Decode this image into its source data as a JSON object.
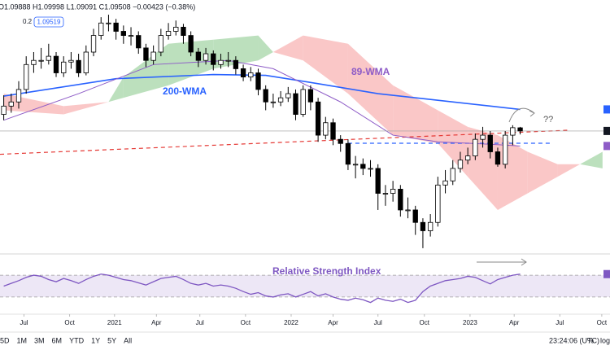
{
  "chart_data": {
    "type": "candlestick",
    "legend_text": "O1.09888 H1.09998 L1.09091 C1.09508 −0.00423 (−0.38%)",
    "indicator_labels": [
      "0.2",
      "1.09519"
    ],
    "up_color": "#ffffff",
    "down_color": "#000000",
    "xlim": [
      -0.5,
      81
    ],
    "xticks": [
      {
        "value": 2.7,
        "label": "Jul"
      },
      {
        "value": 8.8,
        "label": "Oct"
      },
      {
        "value": 14.8,
        "label": "2021"
      },
      {
        "value": 20.4,
        "label": "Apr"
      },
      {
        "value": 26.2,
        "label": "Jul"
      },
      {
        "value": 32.3,
        "label": "Oct"
      },
      {
        "value": 38.4,
        "label": "2022"
      },
      {
        "value": 44.0,
        "label": "Apr"
      },
      {
        "value": 50.0,
        "label": "Jul"
      },
      {
        "value": 56.2,
        "label": "Oct"
      },
      {
        "value": 62.3,
        "label": "2023"
      },
      {
        "value": 68.2,
        "label": "Apr"
      },
      {
        "value": 74.3,
        "label": "Jul"
      },
      {
        "value": 79.9,
        "label": "Oct"
      }
    ],
    "ylim": [
      0.949,
      1.2527
    ],
    "candles": [
      [
        1.115,
        1.138,
        1.108,
        1.125
      ],
      [
        1.125,
        1.14,
        1.117,
        1.13
      ],
      [
        1.13,
        1.155,
        1.122,
        1.145
      ],
      [
        1.145,
        1.185,
        1.14,
        1.175
      ],
      [
        1.175,
        1.19,
        1.165,
        1.18
      ],
      [
        1.18,
        1.195,
        1.17,
        1.18
      ],
      [
        1.18,
        1.2,
        1.175,
        1.185
      ],
      [
        1.185,
        1.19,
        1.16,
        1.165
      ],
      [
        1.165,
        1.185,
        1.16,
        1.178
      ],
      [
        1.178,
        1.19,
        1.17,
        1.18
      ],
      [
        1.18,
        1.188,
        1.16,
        1.165
      ],
      [
        1.165,
        1.198,
        1.162,
        1.19
      ],
      [
        1.19,
        1.218,
        1.185,
        1.21
      ],
      [
        1.21,
        1.232,
        1.205,
        1.225
      ],
      [
        1.225,
        1.235,
        1.215,
        1.225
      ],
      [
        1.225,
        1.23,
        1.205,
        1.215
      ],
      [
        1.215,
        1.222,
        1.2,
        1.21
      ],
      [
        1.21,
        1.22,
        1.198,
        1.21
      ],
      [
        1.21,
        1.215,
        1.188,
        1.195
      ],
      [
        1.195,
        1.2,
        1.172,
        1.18
      ],
      [
        1.18,
        1.198,
        1.175,
        1.19
      ],
      [
        1.19,
        1.218,
        1.185,
        1.21
      ],
      [
        1.21,
        1.225,
        1.205,
        1.215
      ],
      [
        1.215,
        1.228,
        1.21,
        1.22
      ],
      [
        1.22,
        1.224,
        1.2,
        1.21
      ],
      [
        1.21,
        1.215,
        1.185,
        1.19
      ],
      [
        1.19,
        1.195,
        1.172,
        1.18
      ],
      [
        1.18,
        1.195,
        1.175,
        1.188
      ],
      [
        1.188,
        1.192,
        1.168,
        1.175
      ],
      [
        1.175,
        1.188,
        1.17,
        1.18
      ],
      [
        1.18,
        1.19,
        1.172,
        1.18
      ],
      [
        1.18,
        1.185,
        1.163,
        1.17
      ],
      [
        1.17,
        1.175,
        1.155,
        1.16
      ],
      [
        1.16,
        1.172,
        1.155,
        1.165
      ],
      [
        1.165,
        1.17,
        1.138,
        1.145
      ],
      [
        1.145,
        1.15,
        1.12,
        1.13
      ],
      [
        1.13,
        1.14,
        1.123,
        1.13
      ],
      [
        1.13,
        1.143,
        1.125,
        1.135
      ],
      [
        1.135,
        1.148,
        1.13,
        1.14
      ],
      [
        1.14,
        1.145,
        1.108,
        1.115
      ],
      [
        1.115,
        1.15,
        1.112,
        1.145
      ],
      [
        1.145,
        1.15,
        1.12,
        1.13
      ],
      [
        1.13,
        1.135,
        1.082,
        1.09
      ],
      [
        1.09,
        1.112,
        1.085,
        1.105
      ],
      [
        1.105,
        1.11,
        1.078,
        1.085
      ],
      [
        1.085,
        1.09,
        1.07,
        1.08
      ],
      [
        1.08,
        1.085,
        1.048,
        1.055
      ],
      [
        1.055,
        1.065,
        1.038,
        1.055
      ],
      [
        1.055,
        1.062,
        1.042,
        1.05
      ],
      [
        1.05,
        1.06,
        1.04,
        1.05
      ],
      [
        1.05,
        1.055,
        1.0,
        1.02
      ],
      [
        1.02,
        1.03,
        1.005,
        1.02
      ],
      [
        1.02,
        1.035,
        1.01,
        1.025
      ],
      [
        1.025,
        1.03,
        0.992,
        1.0
      ],
      [
        1.0,
        1.015,
        0.99,
        1.0
      ],
      [
        1.0,
        1.005,
        0.97,
        0.985
      ],
      [
        0.985,
        0.99,
        0.954,
        0.975
      ],
      [
        0.975,
        0.995,
        0.968,
        0.985
      ],
      [
        0.985,
        1.04,
        0.98,
        1.03
      ],
      [
        1.03,
        1.048,
        1.02,
        1.035
      ],
      [
        1.035,
        1.06,
        1.03,
        1.05
      ],
      [
        1.05,
        1.07,
        1.045,
        1.06
      ],
      [
        1.06,
        1.075,
        1.055,
        1.065
      ],
      [
        1.065,
        1.092,
        1.06,
        1.085
      ],
      [
        1.085,
        1.1,
        1.075,
        1.09
      ],
      [
        1.09,
        1.095,
        1.062,
        1.07
      ],
      [
        1.07,
        1.075,
        1.052,
        1.055
      ],
      [
        1.055,
        1.095,
        1.05,
        1.09
      ],
      [
        1.09,
        1.102,
        1.078,
        1.099
      ],
      [
        1.09888,
        1.09998,
        1.09091,
        1.09508
      ]
    ],
    "lines": [
      {
        "name": "200-WMA",
        "color": "#2962ff",
        "x": [
          0,
          15,
          28,
          35,
          42,
          50,
          58,
          65,
          69
        ],
        "values": [
          1.137,
          1.158,
          1.163,
          1.162,
          1.152,
          1.14,
          1.132,
          1.125,
          1.121
        ]
      },
      {
        "name": "89-WMA",
        "color": "#8e5cc7",
        "x": [
          0,
          10,
          20,
          30,
          36,
          45,
          52,
          58,
          65,
          69
        ],
        "values": [
          1.108,
          1.14,
          1.175,
          1.18,
          1.17,
          1.13,
          1.09,
          1.082,
          1.079,
          1.077
        ]
      }
    ],
    "cloud": {
      "up_color": "#a5d6a7",
      "down_color": "#f8b4b4",
      "x": [
        0,
        8,
        14,
        16,
        22,
        28,
        34,
        36,
        40,
        46,
        52,
        58,
        62,
        66,
        70,
        74,
        77,
        80
      ],
      "span_a": [
        1.12,
        1.115,
        1.13,
        1.16,
        1.2,
        1.205,
        1.21,
        1.19,
        1.18,
        1.14,
        1.09,
        1.08,
        1.04,
        1.0,
        1.02,
        1.04,
        1.055,
        1.07
      ],
      "span_b": [
        1.14,
        1.125,
        1.13,
        1.135,
        1.15,
        1.17,
        1.18,
        1.19,
        1.21,
        1.2,
        1.15,
        1.12,
        1.1,
        1.09,
        1.07,
        1.055,
        1.055,
        1.05
      ]
    },
    "trendline": {
      "color": "#e53935",
      "x": [
        -0.5,
        75.5
      ],
      "values": [
        1.067,
        1.096
      ]
    },
    "level": {
      "color": "#2962ff",
      "x": [
        46,
        73
      ],
      "values": [
        1.0803,
        1.0803
      ]
    },
    "annotation": "??",
    "rsi": {
      "title": "Relative Strength Index",
      "color": "#7e57c2",
      "band_color": "#ede7f6",
      "ylim": [
        0,
        100
      ],
      "band": [
        30,
        70
      ],
      "values": [
        50,
        55,
        60,
        66,
        70,
        68,
        62,
        58,
        64,
        60,
        55,
        62,
        68,
        72,
        70,
        66,
        62,
        60,
        56,
        52,
        58,
        64,
        66,
        68,
        62,
        55,
        52,
        55,
        50,
        52,
        50,
        46,
        40,
        35,
        38,
        32,
        30,
        34,
        36,
        30,
        35,
        40,
        32,
        36,
        30,
        26,
        24,
        28,
        25,
        20,
        28,
        24,
        22,
        26,
        20,
        24,
        40,
        50,
        55,
        60,
        62,
        64,
        68,
        66,
        60,
        54,
        62,
        66,
        70,
        72
      ]
    }
  },
  "toolbar": {
    "ranges": [
      "5D",
      "1M",
      "3M",
      "6M",
      "YTD",
      "1Y",
      "5Y",
      "All"
    ],
    "time": "23:24:06 (UTC)",
    "percent": "%",
    "log": "log"
  }
}
